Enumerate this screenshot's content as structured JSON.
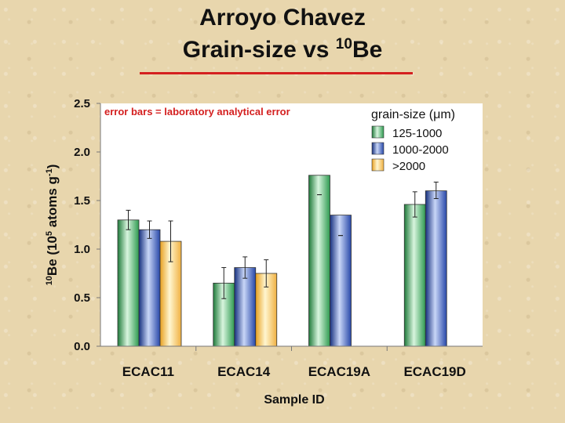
{
  "chart_data": {
    "type": "bar",
    "title": "Arroyo Chavez",
    "subtitle_prefix": "Grain-size vs ",
    "subtitle_sup": "10",
    "subtitle_suffix": "Be",
    "annotation": "error bars = laboratory analytical error",
    "legend_title": "grain-size (μm)",
    "legend_placement": "top-right",
    "xlabel": "Sample ID",
    "ylabel_sup1": "10",
    "ylabel_mid": "Be (10",
    "ylabel_sup2": "5",
    "ylabel_mid2": " atoms g",
    "ylabel_sup3": "-1",
    "ylabel_end": ")",
    "ylim": [
      0,
      2.5
    ],
    "yticks": [
      "0.0",
      "0.5",
      "1.0",
      "1.5",
      "2.0",
      "2.5"
    ],
    "categories": [
      "ECAC11",
      "ECAC14",
      "ECAC19A",
      "ECAC19D"
    ],
    "series": [
      {
        "name": "125-1000",
        "color": "#3fa860",
        "values": [
          1.3,
          0.65,
          1.76,
          1.46
        ],
        "err_low": [
          1.2,
          0.49,
          1.56,
          1.33
        ],
        "err_high": [
          1.4,
          0.81,
          1.56,
          1.59
        ]
      },
      {
        "name": "1000-2000",
        "color": "#2e4fb0",
        "values": [
          1.2,
          0.81,
          1.35,
          1.6
        ],
        "err_low": [
          1.11,
          0.7,
          1.14,
          1.52
        ],
        "err_high": [
          1.29,
          0.92,
          1.14,
          1.69
        ]
      },
      {
        "name": ">2000",
        "color": "#f5b030",
        "values": [
          1.08,
          0.75,
          null,
          null
        ],
        "err_low": [
          0.87,
          0.61,
          null,
          null
        ],
        "err_high": [
          1.29,
          0.89,
          null,
          null
        ]
      }
    ],
    "grid": false
  }
}
